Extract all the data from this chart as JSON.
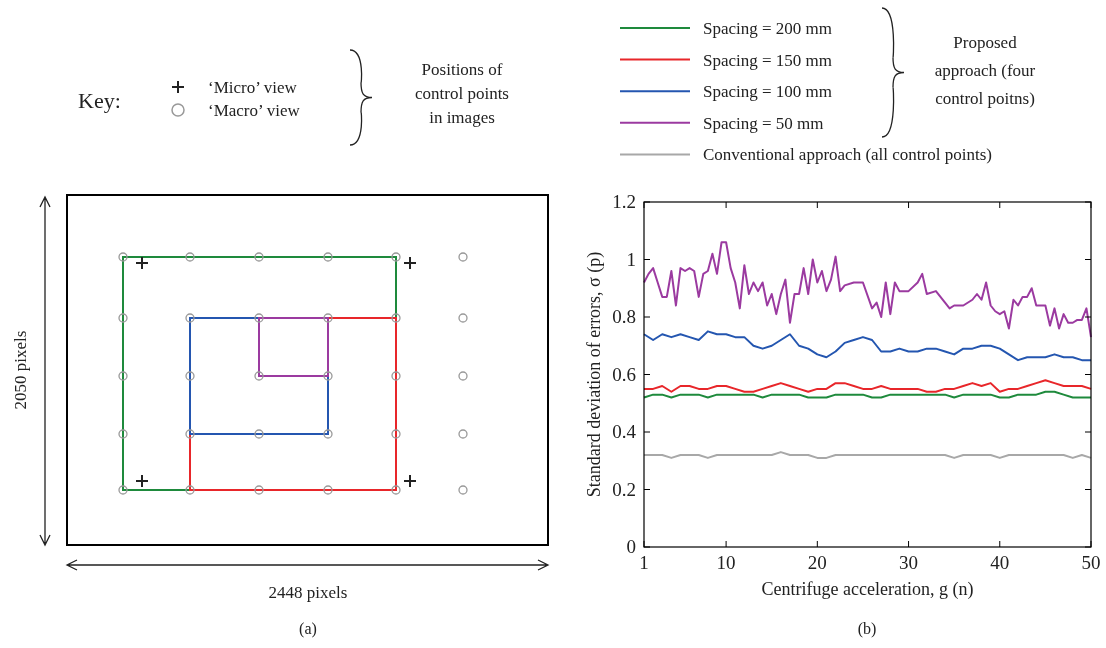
{
  "chart_data": [
    {
      "type": "other",
      "annotations": [
        "Key:",
        "‘Micro’ view",
        "‘Macro’ view",
        "Positions of control points in images",
        "2050 pixels",
        "2448 pixels",
        "(a)"
      ]
    },
    {
      "type": "line",
      "xlabel": "Centrifuge acceleration, g (n)",
      "ylabel": "Standard deviation of errors, σ (p)",
      "xlim": [
        1,
        50
      ],
      "ylim": [
        0,
        1.2
      ],
      "xticks": [
        1,
        10,
        20,
        30,
        40,
        50
      ],
      "yticks": [
        0,
        0.2,
        0.4,
        0.6,
        0.8,
        1,
        1.2
      ],
      "legend": "top",
      "line_style": "solid",
      "marker": "none",
      "annotations": [
        "Proposed approach (four control poitns)",
        "(b)"
      ],
      "x": [
        1,
        2,
        3,
        4,
        5,
        6,
        7,
        8,
        9,
        10,
        11,
        12,
        13,
        14,
        15,
        16,
        17,
        18,
        19,
        20,
        21,
        22,
        23,
        24,
        25,
        26,
        27,
        28,
        29,
        30,
        31,
        32,
        33,
        34,
        35,
        36,
        37,
        38,
        39,
        40,
        41,
        42,
        43,
        44,
        45,
        46,
        47,
        48,
        49,
        50
      ],
      "series": [
        {
          "name": "Spacing = 200 mm",
          "color": "#1e8a3c",
          "values": [
            0.52,
            0.53,
            0.53,
            0.52,
            0.53,
            0.53,
            0.53,
            0.52,
            0.53,
            0.53,
            0.53,
            0.53,
            0.53,
            0.52,
            0.53,
            0.53,
            0.53,
            0.53,
            0.52,
            0.52,
            0.52,
            0.53,
            0.53,
            0.53,
            0.53,
            0.52,
            0.52,
            0.53,
            0.53,
            0.53,
            0.53,
            0.53,
            0.53,
            0.53,
            0.52,
            0.53,
            0.53,
            0.53,
            0.53,
            0.52,
            0.52,
            0.53,
            0.53,
            0.53,
            0.54,
            0.54,
            0.53,
            0.52,
            0.52,
            0.52
          ]
        },
        {
          "name": "Spacing = 150 mm",
          "color": "#e8262a",
          "values": [
            0.55,
            0.55,
            0.56,
            0.54,
            0.56,
            0.56,
            0.55,
            0.55,
            0.56,
            0.56,
            0.55,
            0.54,
            0.54,
            0.55,
            0.56,
            0.57,
            0.56,
            0.55,
            0.54,
            0.55,
            0.55,
            0.57,
            0.57,
            0.56,
            0.55,
            0.55,
            0.56,
            0.55,
            0.55,
            0.55,
            0.55,
            0.54,
            0.54,
            0.55,
            0.55,
            0.56,
            0.57,
            0.56,
            0.57,
            0.54,
            0.55,
            0.55,
            0.56,
            0.57,
            0.58,
            0.57,
            0.56,
            0.56,
            0.56,
            0.55
          ]
        },
        {
          "name": "Spacing = 100 mm",
          "color": "#2456b0",
          "values": [
            0.74,
            0.72,
            0.74,
            0.73,
            0.74,
            0.73,
            0.72,
            0.75,
            0.74,
            0.74,
            0.73,
            0.73,
            0.7,
            0.69,
            0.7,
            0.72,
            0.74,
            0.7,
            0.69,
            0.67,
            0.66,
            0.68,
            0.71,
            0.72,
            0.73,
            0.72,
            0.68,
            0.68,
            0.69,
            0.68,
            0.68,
            0.69,
            0.69,
            0.68,
            0.67,
            0.69,
            0.69,
            0.7,
            0.7,
            0.69,
            0.67,
            0.65,
            0.66,
            0.66,
            0.66,
            0.67,
            0.66,
            0.66,
            0.65,
            0.65
          ]
        },
        {
          "name": "Spacing = 50 mm",
          "color": "#9b3aa0",
          "x": [
            1,
            1.5,
            2,
            2.5,
            3,
            3.5,
            4,
            4.5,
            5,
            5.5,
            6,
            6.5,
            7,
            7.5,
            8,
            8.5,
            9,
            9.5,
            10,
            10.5,
            11,
            11.5,
            12,
            12.5,
            13,
            13.5,
            14,
            14.5,
            15,
            15.5,
            16,
            16.5,
            17,
            17.5,
            18,
            18.5,
            19,
            19.5,
            20,
            20.5,
            21,
            21.5,
            22,
            22.5,
            23,
            24,
            25,
            26,
            26.5,
            27,
            27.5,
            28,
            28.5,
            29,
            30,
            31,
            31.5,
            32,
            33,
            34,
            34.5,
            35,
            36,
            37,
            37.5,
            38,
            38.5,
            39,
            39.5,
            40,
            40.5,
            41,
            41.5,
            42,
            42.5,
            43,
            43.5,
            44,
            44.5,
            45,
            45.5,
            46,
            46.5,
            47,
            47.5,
            48,
            48.5,
            49,
            49.5,
            50
          ],
          "values": [
            0.92,
            0.95,
            0.97,
            0.92,
            0.87,
            0.87,
            0.96,
            0.84,
            0.97,
            0.96,
            0.97,
            0.96,
            0.87,
            0.95,
            0.96,
            1.02,
            0.95,
            1.06,
            1.06,
            0.97,
            0.92,
            0.83,
            0.98,
            0.88,
            0.92,
            0.89,
            0.92,
            0.84,
            0.88,
            0.81,
            0.88,
            0.93,
            0.78,
            0.88,
            0.88,
            0.97,
            0.88,
            1,
            0.92,
            0.96,
            0.89,
            0.93,
            1.01,
            0.89,
            0.91,
            0.92,
            0.92,
            0.83,
            0.85,
            0.8,
            0.92,
            0.81,
            0.92,
            0.89,
            0.89,
            0.92,
            0.95,
            0.88,
            0.89,
            0.85,
            0.83,
            0.84,
            0.84,
            0.86,
            0.88,
            0.86,
            0.92,
            0.84,
            0.82,
            0.81,
            0.82,
            0.76,
            0.86,
            0.84,
            0.87,
            0.87,
            0.9,
            0.84,
            0.84,
            0.84,
            0.77,
            0.83,
            0.76,
            0.81,
            0.78,
            0.78,
            0.79,
            0.79,
            0.83,
            0.73
          ]
        },
        {
          "name": "Conventional approach (all control points)",
          "color": "#a8a8a8",
          "values": [
            0.32,
            0.32,
            0.32,
            0.31,
            0.32,
            0.32,
            0.32,
            0.31,
            0.32,
            0.32,
            0.32,
            0.32,
            0.32,
            0.32,
            0.32,
            0.33,
            0.32,
            0.32,
            0.32,
            0.31,
            0.31,
            0.32,
            0.32,
            0.32,
            0.32,
            0.32,
            0.32,
            0.32,
            0.32,
            0.32,
            0.32,
            0.32,
            0.32,
            0.32,
            0.31,
            0.32,
            0.32,
            0.32,
            0.32,
            0.31,
            0.32,
            0.32,
            0.32,
            0.32,
            0.32,
            0.32,
            0.32,
            0.31,
            0.32,
            0.31
          ]
        }
      ]
    }
  ]
}
